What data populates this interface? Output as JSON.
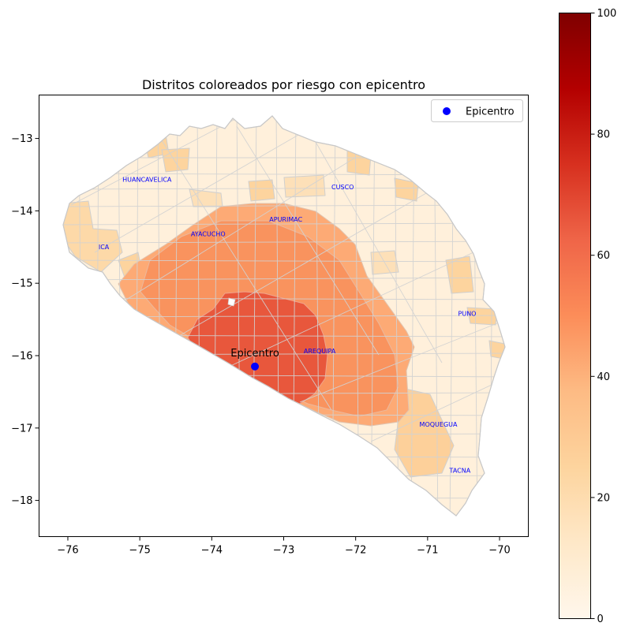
{
  "chart_data": {
    "type": "choropleth-map",
    "title": "Distritos coloreados por riesgo con epicentro",
    "xlim": [
      -76.4,
      -69.6
    ],
    "ylim": [
      -18.5,
      -12.4
    ],
    "xticks": [
      -76,
      -75,
      -74,
      -73,
      -72,
      -71,
      -70
    ],
    "yticks": [
      -13,
      -14,
      -15,
      -16,
      -17,
      -18
    ],
    "xtick_labels": [
      "−76",
      "−75",
      "−74",
      "−73",
      "−72",
      "−71",
      "−70"
    ],
    "ytick_labels": [
      "−13",
      "−14",
      "−15",
      "−16",
      "−17",
      "−18"
    ],
    "colorbar": {
      "cmap": "OrRd",
      "range": [
        0,
        100
      ],
      "ticks": [
        0,
        20,
        40,
        60,
        80,
        100
      ],
      "tick_labels": [
        "0",
        "20",
        "40",
        "60",
        "80",
        "100"
      ]
    },
    "region_labels": [
      {
        "name": "HUANCAVELICA",
        "lon": -74.9,
        "lat": -13.6
      },
      {
        "name": "CUSCO",
        "lon": -72.18,
        "lat": -13.7
      },
      {
        "name": "APURIMAC",
        "lon": -72.97,
        "lat": -14.15
      },
      {
        "name": "AYACUCHO",
        "lon": -74.05,
        "lat": -14.35
      },
      {
        "name": "ICA",
        "lon": -75.5,
        "lat": -14.53
      },
      {
        "name": "PUNO",
        "lon": -70.45,
        "lat": -15.45
      },
      {
        "name": "AREQUIPA",
        "lon": -72.5,
        "lat": -15.97
      },
      {
        "name": "MOQUEGUA",
        "lon": -70.85,
        "lat": -16.98
      },
      {
        "name": "TACNA",
        "lon": -70.55,
        "lat": -17.62
      }
    ],
    "epicenter": {
      "lon": -73.4,
      "lat": -16.15,
      "label": "Epicentro",
      "color": "#0000ff"
    },
    "legend": {
      "entries": [
        "Epicentro"
      ],
      "position": "upper right"
    },
    "risk_zones": [
      {
        "zone": "outer",
        "risk": 8
      },
      {
        "zone": "ring",
        "risk": 38
      },
      {
        "zone": "middle",
        "risk": 48
      },
      {
        "zone": "core",
        "risk": 58
      }
    ],
    "boundary_color": "#cfcfcf"
  }
}
